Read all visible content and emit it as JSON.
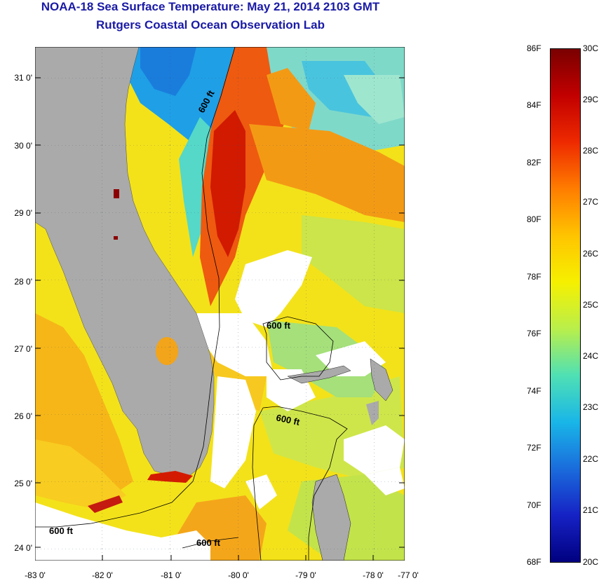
{
  "header": {
    "title": "NOAA-18 Sea Surface Temperature:  May 21, 2014 2103 GMT",
    "subtitle": "Rutgers Coastal Ocean Observation Lab"
  },
  "map": {
    "lon_range": [
      -83,
      -77
    ],
    "lat_range": [
      23.8,
      31.4
    ],
    "x_tick_labels": [
      "-83 0'",
      "-82 0'",
      "-81 0'",
      "-80 0'",
      "-79 0'",
      "-78 0'",
      "-77 0'"
    ],
    "y_tick_labels": [
      "31 0'",
      "30 0'",
      "29 0'",
      "28 0'",
      "27 0'",
      "26 0'",
      "25 0'",
      "24 0'"
    ],
    "contour_labels": [
      "600 ft",
      "600 ft",
      "600 ft",
      "600 ft",
      "600 ft"
    ],
    "land_color": "#aaaaaa",
    "cloud_color": "#ffffff"
  },
  "colorbar": {
    "fahrenheit_labels": [
      "86F",
      "84F",
      "82F",
      "80F",
      "78F",
      "76F",
      "74F",
      "72F",
      "70F",
      "68F"
    ],
    "celsius_labels": [
      "30C",
      "29C",
      "28C",
      "27C",
      "26C",
      "25C",
      "24C",
      "23C",
      "22C",
      "21C",
      "20C"
    ],
    "colors": [
      "#7a0000",
      "#c20000",
      "#ee2a00",
      "#ff7d00",
      "#ffc400",
      "#f6f000",
      "#b9ef4b",
      "#4fe0b4",
      "#19b6e8",
      "#1a6cdc",
      "#1622c4",
      "#000080"
    ]
  }
}
